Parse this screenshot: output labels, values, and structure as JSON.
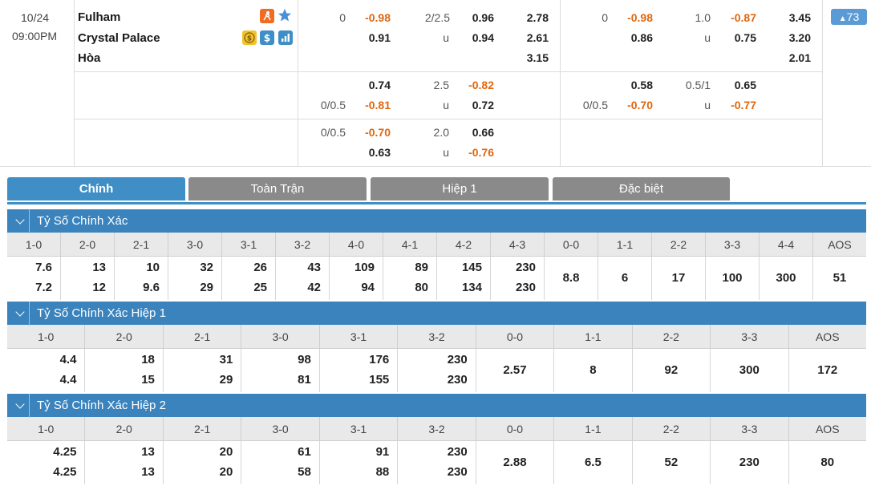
{
  "match": {
    "date": "10/24",
    "time": "09:00PM",
    "home": "Fulham",
    "away": "Crystal Palace",
    "draw": "Hòa",
    "more_count": "73",
    "icons": [
      "goal-icon",
      "star-icon",
      "coin-icon",
      "dollar-icon",
      "stats-icon"
    ]
  },
  "odds_rows": [
    {
      "ah_line": "0",
      "ah_home": "-0.98",
      "ah_away": "0.91",
      "ou_line": "2/2.5",
      "ou_over": "0.96",
      "ou_u": "u",
      "ou_under": "0.94",
      "x_home": "2.78",
      "x_away": "2.61",
      "x_draw": "3.15",
      "h1_ah_line": "0",
      "h1_ah_home": "-0.98",
      "h1_ah_away": "0.86",
      "h1_ou_line": "1.0",
      "h1_ou_over": "-0.87",
      "h1_ou_u": "u",
      "h1_ou_under": "0.75",
      "h1_x_home": "3.45",
      "h1_x_away": "3.20",
      "h1_x_draw": "2.01"
    },
    {
      "ah_line": "0/0.5",
      "ah_home": "0.74",
      "ah_away": "-0.81",
      "ou_line": "2.5",
      "ou_over": "-0.82",
      "ou_u": "u",
      "ou_under": "0.72",
      "h1_ah_line": "0/0.5",
      "h1_ah_home": "0.58",
      "h1_ah_away": "-0.70",
      "h1_ou_line": "0.5/1",
      "h1_ou_over": "0.65",
      "h1_ou_u": "u",
      "h1_ou_under": "-0.77"
    },
    {
      "ah_line": "0/0.5",
      "ah_home": "-0.70",
      "ah_away": "0.63",
      "ou_line": "2.0",
      "ou_over": "0.66",
      "ou_u": "u",
      "ou_under": "-0.76"
    }
  ],
  "tabs": [
    "Chính",
    "Toàn Trận",
    "Hiệp 1",
    "Đặc biệt"
  ],
  "sections": [
    {
      "title": "Tỷ Số Chính Xác",
      "headers": [
        "1-0",
        "2-0",
        "2-1",
        "3-0",
        "3-1",
        "3-2",
        "4-0",
        "4-1",
        "4-2",
        "4-3",
        "0-0",
        "1-1",
        "2-2",
        "3-3",
        "4-4",
        "AOS"
      ],
      "values": [
        [
          "7.6",
          "7.2"
        ],
        [
          "13",
          "12"
        ],
        [
          "10",
          "9.6"
        ],
        [
          "32",
          "29"
        ],
        [
          "26",
          "25"
        ],
        [
          "43",
          "42"
        ],
        [
          "109",
          "94"
        ],
        [
          "89",
          "80"
        ],
        [
          "145",
          "134"
        ],
        [
          "230",
          "230"
        ],
        [
          "8.8"
        ],
        [
          "6"
        ],
        [
          "17"
        ],
        [
          "100"
        ],
        [
          "300"
        ],
        [
          "51"
        ]
      ]
    },
    {
      "title": "Tỷ Số Chính Xác Hiệp 1",
      "headers": [
        "1-0",
        "2-0",
        "2-1",
        "3-0",
        "3-1",
        "3-2",
        "0-0",
        "1-1",
        "2-2",
        "3-3",
        "AOS"
      ],
      "values": [
        [
          "4.4",
          "4.4"
        ],
        [
          "18",
          "15"
        ],
        [
          "31",
          "29"
        ],
        [
          "98",
          "81"
        ],
        [
          "176",
          "155"
        ],
        [
          "230",
          "230"
        ],
        [
          "2.57"
        ],
        [
          "8"
        ],
        [
          "92"
        ],
        [
          "300"
        ],
        [
          "172"
        ]
      ]
    },
    {
      "title": "Tỷ Số Chính Xác Hiệp 2",
      "headers": [
        "1-0",
        "2-0",
        "2-1",
        "3-0",
        "3-1",
        "3-2",
        "0-0",
        "1-1",
        "2-2",
        "3-3",
        "AOS"
      ],
      "values": [
        [
          "4.25",
          "4.25"
        ],
        [
          "13",
          "13"
        ],
        [
          "20",
          "20"
        ],
        [
          "61",
          "58"
        ],
        [
          "91",
          "88"
        ],
        [
          "230",
          "230"
        ],
        [
          "2.88"
        ],
        [
          "6.5"
        ],
        [
          "52"
        ],
        [
          "230"
        ],
        [
          "80"
        ]
      ]
    }
  ]
}
